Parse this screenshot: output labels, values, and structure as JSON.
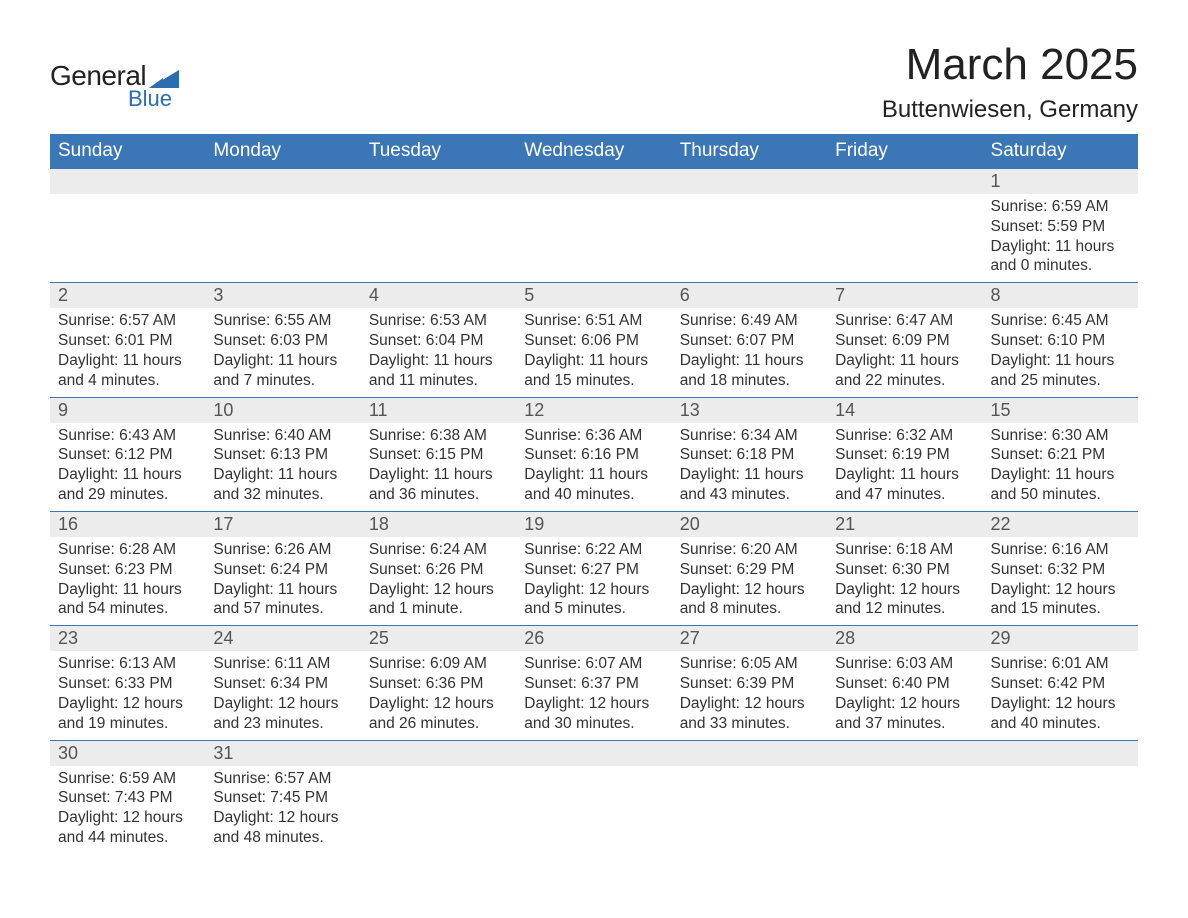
{
  "logo": {
    "general": "General",
    "blue": "Blue"
  },
  "header": {
    "title": "March 2025",
    "location": "Buttenwiesen, Germany"
  },
  "colors": {
    "header_bg": "#3b77b7",
    "header_text": "#ffffff",
    "daynum_bg": "#ececec",
    "row_border": "#3b77b7",
    "logo_blue": "#2a6db0"
  },
  "daynames": [
    "Sunday",
    "Monday",
    "Tuesday",
    "Wednesday",
    "Thursday",
    "Friday",
    "Saturday"
  ],
  "weeks": [
    [
      null,
      null,
      null,
      null,
      null,
      null,
      {
        "n": "1",
        "sr": "Sunrise: 6:59 AM",
        "ss": "Sunset: 5:59 PM",
        "d1": "Daylight: 11 hours",
        "d2": "and 0 minutes."
      }
    ],
    [
      {
        "n": "2",
        "sr": "Sunrise: 6:57 AM",
        "ss": "Sunset: 6:01 PM",
        "d1": "Daylight: 11 hours",
        "d2": "and 4 minutes."
      },
      {
        "n": "3",
        "sr": "Sunrise: 6:55 AM",
        "ss": "Sunset: 6:03 PM",
        "d1": "Daylight: 11 hours",
        "d2": "and 7 minutes."
      },
      {
        "n": "4",
        "sr": "Sunrise: 6:53 AM",
        "ss": "Sunset: 6:04 PM",
        "d1": "Daylight: 11 hours",
        "d2": "and 11 minutes."
      },
      {
        "n": "5",
        "sr": "Sunrise: 6:51 AM",
        "ss": "Sunset: 6:06 PM",
        "d1": "Daylight: 11 hours",
        "d2": "and 15 minutes."
      },
      {
        "n": "6",
        "sr": "Sunrise: 6:49 AM",
        "ss": "Sunset: 6:07 PM",
        "d1": "Daylight: 11 hours",
        "d2": "and 18 minutes."
      },
      {
        "n": "7",
        "sr": "Sunrise: 6:47 AM",
        "ss": "Sunset: 6:09 PM",
        "d1": "Daylight: 11 hours",
        "d2": "and 22 minutes."
      },
      {
        "n": "8",
        "sr": "Sunrise: 6:45 AM",
        "ss": "Sunset: 6:10 PM",
        "d1": "Daylight: 11 hours",
        "d2": "and 25 minutes."
      }
    ],
    [
      {
        "n": "9",
        "sr": "Sunrise: 6:43 AM",
        "ss": "Sunset: 6:12 PM",
        "d1": "Daylight: 11 hours",
        "d2": "and 29 minutes."
      },
      {
        "n": "10",
        "sr": "Sunrise: 6:40 AM",
        "ss": "Sunset: 6:13 PM",
        "d1": "Daylight: 11 hours",
        "d2": "and 32 minutes."
      },
      {
        "n": "11",
        "sr": "Sunrise: 6:38 AM",
        "ss": "Sunset: 6:15 PM",
        "d1": "Daylight: 11 hours",
        "d2": "and 36 minutes."
      },
      {
        "n": "12",
        "sr": "Sunrise: 6:36 AM",
        "ss": "Sunset: 6:16 PM",
        "d1": "Daylight: 11 hours",
        "d2": "and 40 minutes."
      },
      {
        "n": "13",
        "sr": "Sunrise: 6:34 AM",
        "ss": "Sunset: 6:18 PM",
        "d1": "Daylight: 11 hours",
        "d2": "and 43 minutes."
      },
      {
        "n": "14",
        "sr": "Sunrise: 6:32 AM",
        "ss": "Sunset: 6:19 PM",
        "d1": "Daylight: 11 hours",
        "d2": "and 47 minutes."
      },
      {
        "n": "15",
        "sr": "Sunrise: 6:30 AM",
        "ss": "Sunset: 6:21 PM",
        "d1": "Daylight: 11 hours",
        "d2": "and 50 minutes."
      }
    ],
    [
      {
        "n": "16",
        "sr": "Sunrise: 6:28 AM",
        "ss": "Sunset: 6:23 PM",
        "d1": "Daylight: 11 hours",
        "d2": "and 54 minutes."
      },
      {
        "n": "17",
        "sr": "Sunrise: 6:26 AM",
        "ss": "Sunset: 6:24 PM",
        "d1": "Daylight: 11 hours",
        "d2": "and 57 minutes."
      },
      {
        "n": "18",
        "sr": "Sunrise: 6:24 AM",
        "ss": "Sunset: 6:26 PM",
        "d1": "Daylight: 12 hours",
        "d2": "and 1 minute."
      },
      {
        "n": "19",
        "sr": "Sunrise: 6:22 AM",
        "ss": "Sunset: 6:27 PM",
        "d1": "Daylight: 12 hours",
        "d2": "and 5 minutes."
      },
      {
        "n": "20",
        "sr": "Sunrise: 6:20 AM",
        "ss": "Sunset: 6:29 PM",
        "d1": "Daylight: 12 hours",
        "d2": "and 8 minutes."
      },
      {
        "n": "21",
        "sr": "Sunrise: 6:18 AM",
        "ss": "Sunset: 6:30 PM",
        "d1": "Daylight: 12 hours",
        "d2": "and 12 minutes."
      },
      {
        "n": "22",
        "sr": "Sunrise: 6:16 AM",
        "ss": "Sunset: 6:32 PM",
        "d1": "Daylight: 12 hours",
        "d2": "and 15 minutes."
      }
    ],
    [
      {
        "n": "23",
        "sr": "Sunrise: 6:13 AM",
        "ss": "Sunset: 6:33 PM",
        "d1": "Daylight: 12 hours",
        "d2": "and 19 minutes."
      },
      {
        "n": "24",
        "sr": "Sunrise: 6:11 AM",
        "ss": "Sunset: 6:34 PM",
        "d1": "Daylight: 12 hours",
        "d2": "and 23 minutes."
      },
      {
        "n": "25",
        "sr": "Sunrise: 6:09 AM",
        "ss": "Sunset: 6:36 PM",
        "d1": "Daylight: 12 hours",
        "d2": "and 26 minutes."
      },
      {
        "n": "26",
        "sr": "Sunrise: 6:07 AM",
        "ss": "Sunset: 6:37 PM",
        "d1": "Daylight: 12 hours",
        "d2": "and 30 minutes."
      },
      {
        "n": "27",
        "sr": "Sunrise: 6:05 AM",
        "ss": "Sunset: 6:39 PM",
        "d1": "Daylight: 12 hours",
        "d2": "and 33 minutes."
      },
      {
        "n": "28",
        "sr": "Sunrise: 6:03 AM",
        "ss": "Sunset: 6:40 PM",
        "d1": "Daylight: 12 hours",
        "d2": "and 37 minutes."
      },
      {
        "n": "29",
        "sr": "Sunrise: 6:01 AM",
        "ss": "Sunset: 6:42 PM",
        "d1": "Daylight: 12 hours",
        "d2": "and 40 minutes."
      }
    ],
    [
      {
        "n": "30",
        "sr": "Sunrise: 6:59 AM",
        "ss": "Sunset: 7:43 PM",
        "d1": "Daylight: 12 hours",
        "d2": "and 44 minutes."
      },
      {
        "n": "31",
        "sr": "Sunrise: 6:57 AM",
        "ss": "Sunset: 7:45 PM",
        "d1": "Daylight: 12 hours",
        "d2": "and 48 minutes."
      },
      null,
      null,
      null,
      null,
      null
    ]
  ]
}
